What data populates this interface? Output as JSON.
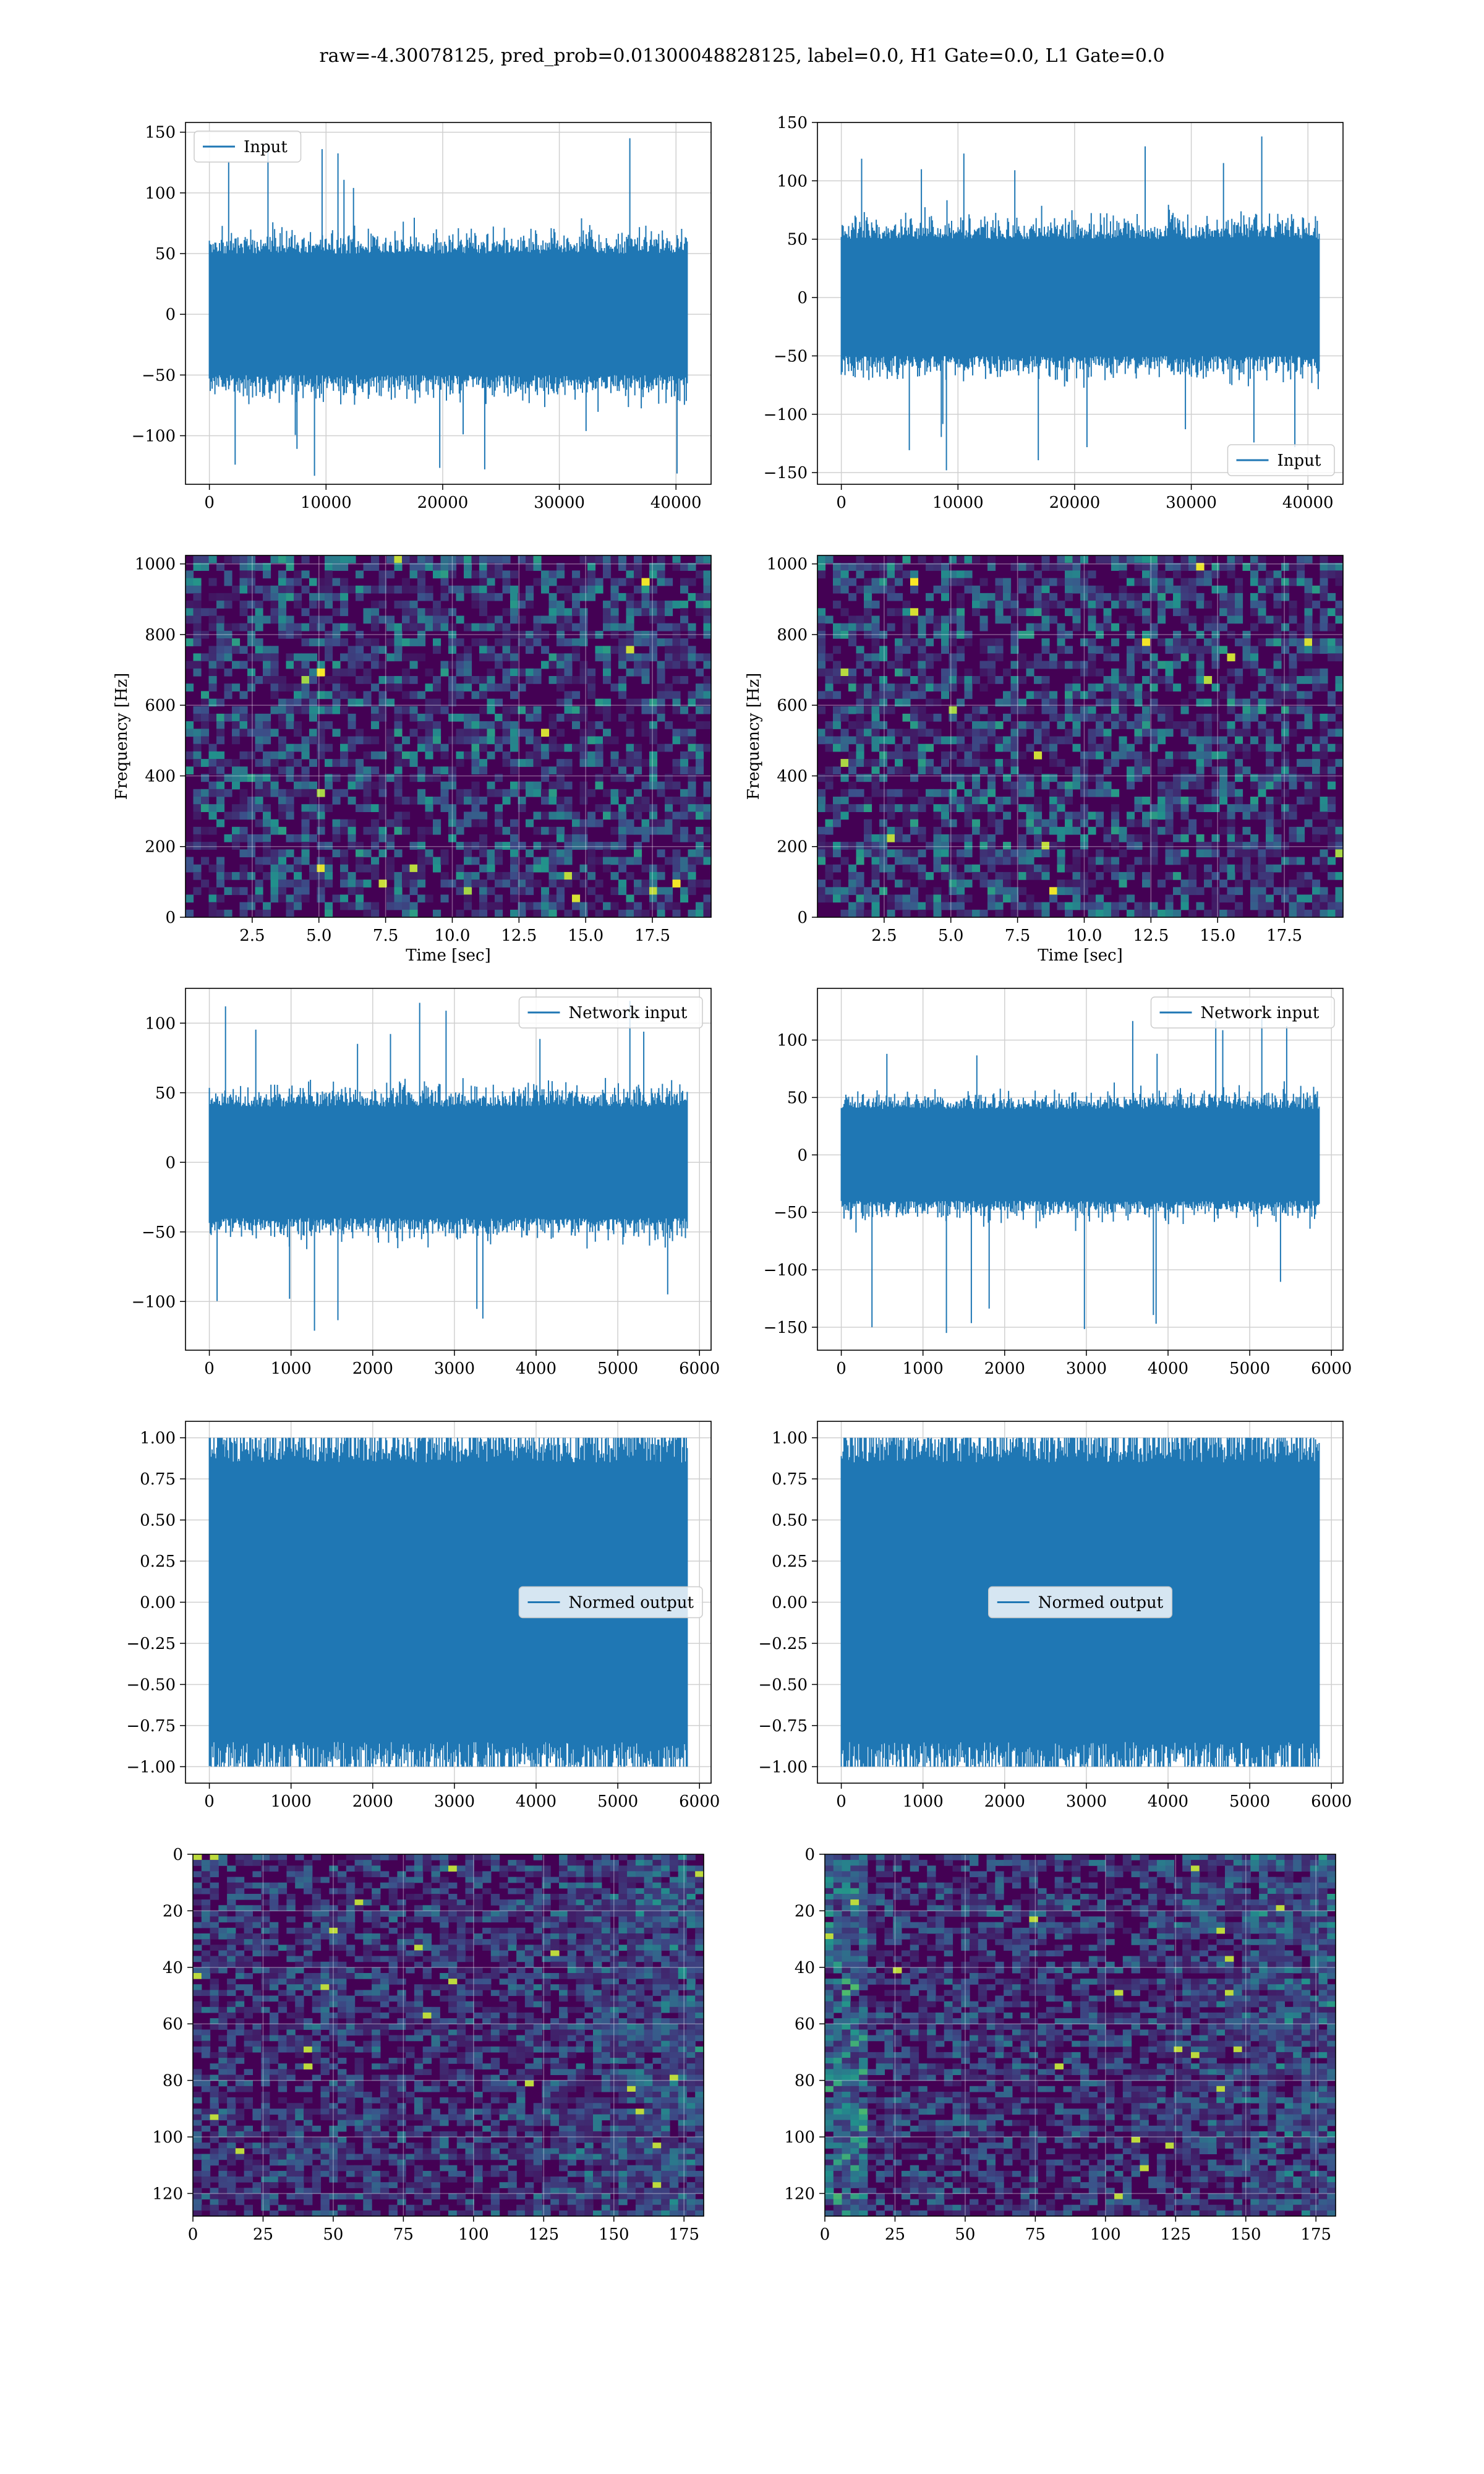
{
  "suptitle": "raw=-4.30078125, pred_prob=0.01300048828125, label=0.0, H1 Gate=0.0, L1 Gate=0.0",
  "colors": {
    "line": "#1f77b4",
    "grid": "#d0d0d0",
    "viridis_low": "#440154",
    "viridis_mid": "#21918c",
    "viridis_high": "#fde725"
  },
  "chart_data": [
    {
      "id": "row1-left",
      "type": "line",
      "legend": "Input",
      "legend_loc": "upper-left",
      "x_range": [
        0,
        40960
      ],
      "xlim": [
        -2048,
        43008
      ],
      "ylim": [
        -140,
        158
      ],
      "xticks": [
        0,
        10000,
        20000,
        30000,
        40000
      ],
      "yticks": [
        -100,
        -50,
        0,
        50,
        100,
        150
      ],
      "band": [
        -50,
        50
      ],
      "spike_max": 145,
      "spike_min": -133,
      "grid": true
    },
    {
      "id": "row1-right",
      "type": "line",
      "legend": "Input",
      "legend_loc": "lower-right",
      "x_range": [
        0,
        40960
      ],
      "xlim": [
        -2048,
        43008
      ],
      "ylim": [
        -160,
        150
      ],
      "xticks": [
        0,
        10000,
        20000,
        30000,
        40000
      ],
      "yticks": [
        -150,
        -100,
        -50,
        0,
        50,
        100,
        150
      ],
      "band": [
        -50,
        50
      ],
      "spike_max": 138,
      "spike_min": -148,
      "grid": true
    },
    {
      "id": "row2-left",
      "type": "heatmap",
      "kind": "spectrogram",
      "xlabel": "Time [sec]",
      "ylabel": "Frequency [Hz]",
      "xlim": [
        0,
        19.7
      ],
      "ylim": [
        0,
        1024
      ],
      "xticks": [
        2.5,
        5.0,
        7.5,
        10.0,
        12.5,
        15.0,
        17.5
      ],
      "yticks": [
        0,
        200,
        400,
        600,
        800,
        1000
      ],
      "grid": true
    },
    {
      "id": "row2-right",
      "type": "heatmap",
      "kind": "spectrogram",
      "xlabel": "Time [sec]",
      "ylabel": "Frequency [Hz]",
      "xlim": [
        0,
        19.7
      ],
      "ylim": [
        0,
        1024
      ],
      "xticks": [
        2.5,
        5.0,
        7.5,
        10.0,
        12.5,
        15.0,
        17.5
      ],
      "yticks": [
        0,
        200,
        400,
        600,
        800,
        1000
      ],
      "grid": true
    },
    {
      "id": "row3-left",
      "type": "line",
      "legend": "Network input",
      "legend_loc": "upper-right",
      "x_range": [
        0,
        5850
      ],
      "xlim": [
        -292,
        6142
      ],
      "ylim": [
        -135,
        125
      ],
      "xticks": [
        0,
        1000,
        2000,
        3000,
        4000,
        5000,
        6000
      ],
      "yticks": [
        -100,
        -50,
        0,
        50,
        100
      ],
      "band": [
        -40,
        40
      ],
      "spike_max": 116,
      "spike_min": -121,
      "grid": true
    },
    {
      "id": "row3-right",
      "type": "line",
      "legend": "Network input",
      "legend_loc": "upper-right",
      "x_range": [
        0,
        5850
      ],
      "xlim": [
        -292,
        6142
      ],
      "ylim": [
        -170,
        145
      ],
      "xticks": [
        0,
        1000,
        2000,
        3000,
        4000,
        5000,
        6000
      ],
      "yticks": [
        -150,
        -100,
        -50,
        0,
        50,
        100
      ],
      "band": [
        -40,
        40
      ],
      "spike_max": 120,
      "spike_min": -155,
      "grid": true
    },
    {
      "id": "row4-left",
      "type": "line",
      "legend": "Normed output",
      "legend_loc": "center-right",
      "x_range": [
        0,
        5850
      ],
      "xlim": [
        -292,
        6142
      ],
      "ylim": [
        -1.1,
        1.1
      ],
      "xticks": [
        0,
        1000,
        2000,
        3000,
        4000,
        5000,
        6000
      ],
      "yticks": [
        -1.0,
        -0.75,
        -0.5,
        -0.25,
        0.0,
        0.25,
        0.5,
        0.75,
        1.0
      ],
      "band": [
        -0.85,
        0.85
      ],
      "spike_max": 1.0,
      "spike_min": -1.0,
      "grid": true
    },
    {
      "id": "row4-right",
      "type": "line",
      "legend": "Normed output",
      "legend_loc": "center",
      "x_range": [
        0,
        5850
      ],
      "xlim": [
        -292,
        6142
      ],
      "ylim": [
        -1.1,
        1.1
      ],
      "xticks": [
        0,
        1000,
        2000,
        3000,
        4000,
        5000,
        6000
      ],
      "yticks": [
        -1.0,
        -0.75,
        -0.5,
        -0.25,
        0.0,
        0.25,
        0.5,
        0.75,
        1.0
      ],
      "band": [
        -0.85,
        0.85
      ],
      "spike_max": 1.0,
      "spike_min": -1.0,
      "grid": true
    },
    {
      "id": "row5-left",
      "type": "heatmap",
      "kind": "feature-map",
      "xlim": [
        0,
        182
      ],
      "ylim": [
        128,
        0
      ],
      "xticks": [
        0,
        25,
        50,
        75,
        100,
        125,
        150,
        175
      ],
      "yticks": [
        0,
        20,
        40,
        60,
        80,
        100,
        120
      ],
      "grid": true
    },
    {
      "id": "row5-right",
      "type": "heatmap",
      "kind": "feature-map",
      "xlim": [
        0,
        182
      ],
      "ylim": [
        128,
        0
      ],
      "xticks": [
        0,
        25,
        50,
        75,
        100,
        125,
        150,
        175
      ],
      "yticks": [
        0,
        20,
        40,
        60,
        80,
        100,
        120
      ],
      "grid": true
    }
  ]
}
